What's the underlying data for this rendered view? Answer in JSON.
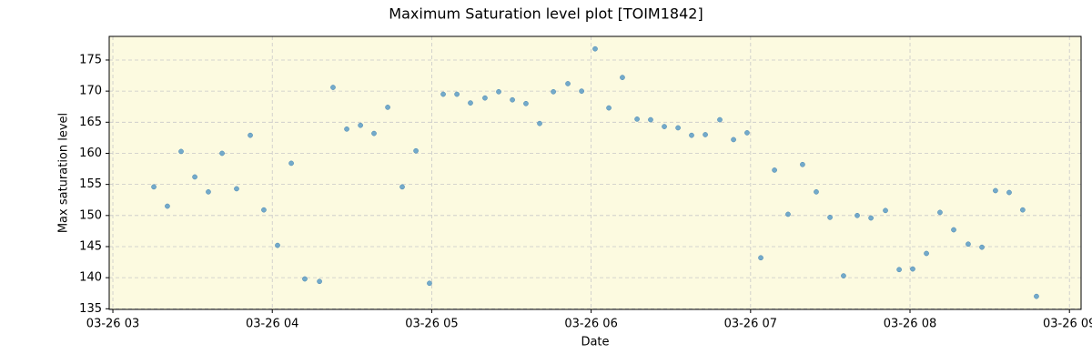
{
  "chart_data": {
    "type": "scatter",
    "title": "Maximum Saturation level plot [TOIM1842]",
    "x_label": "Date",
    "y_label": "Max saturation level",
    "color": "#5b9bc6",
    "background": "#fcfae0",
    "grid": true,
    "xlim": [
      2.977,
      9.073
    ],
    "ylim": [
      134.9,
      178.8
    ],
    "xticks": [
      {
        "value": 3,
        "label": "03-26 03"
      },
      {
        "value": 4,
        "label": "03-26 04"
      },
      {
        "value": 5,
        "label": "03-26 05"
      },
      {
        "value": 6,
        "label": "03-26 06"
      },
      {
        "value": 7,
        "label": "03-26 07"
      },
      {
        "value": 8,
        "label": "03-26 08"
      },
      {
        "value": 9,
        "label": "03-26 09"
      }
    ],
    "yticks": [
      135,
      140,
      145,
      150,
      155,
      160,
      165,
      170,
      175
    ],
    "x": [
      3.257,
      3.342,
      3.428,
      3.514,
      3.599,
      3.685,
      3.776,
      3.862,
      3.947,
      4.033,
      4.119,
      4.204,
      4.296,
      4.381,
      4.467,
      4.553,
      4.638,
      4.724,
      4.815,
      4.901,
      4.986,
      5.072,
      5.158,
      5.243,
      5.334,
      5.42,
      5.506,
      5.591,
      5.677,
      5.763,
      5.854,
      5.94,
      6.025,
      6.111,
      6.196,
      6.288,
      6.373,
      6.459,
      6.545,
      6.63,
      6.716,
      6.807,
      6.893,
      6.978,
      7.064,
      7.15,
      7.235,
      7.326,
      7.412,
      7.498,
      7.583,
      7.669,
      7.755,
      7.846,
      7.932,
      8.017,
      8.103,
      8.188,
      8.274,
      8.365,
      8.451,
      8.536,
      8.622,
      8.707,
      8.793
    ],
    "values": [
      154.6,
      151.5,
      160.3,
      156.2,
      153.8,
      160.0,
      154.3,
      162.9,
      150.9,
      145.2,
      158.4,
      139.8,
      139.4,
      170.6,
      163.9,
      164.5,
      163.2,
      167.4,
      154.6,
      160.4,
      139.1,
      169.5,
      169.5,
      168.1,
      168.9,
      169.9,
      168.6,
      168.0,
      164.8,
      169.9,
      171.2,
      170.0,
      176.8,
      167.3,
      172.2,
      165.5,
      165.4,
      164.3,
      164.1,
      162.9,
      163.0,
      165.4,
      162.2,
      163.3,
      143.2,
      157.3,
      150.2,
      158.2,
      153.8,
      149.7,
      140.3,
      150.0,
      149.6,
      150.8,
      141.3,
      141.4,
      143.9,
      150.5,
      147.7,
      145.4,
      144.9,
      154.0,
      153.7,
      150.9,
      137.0
    ]
  }
}
